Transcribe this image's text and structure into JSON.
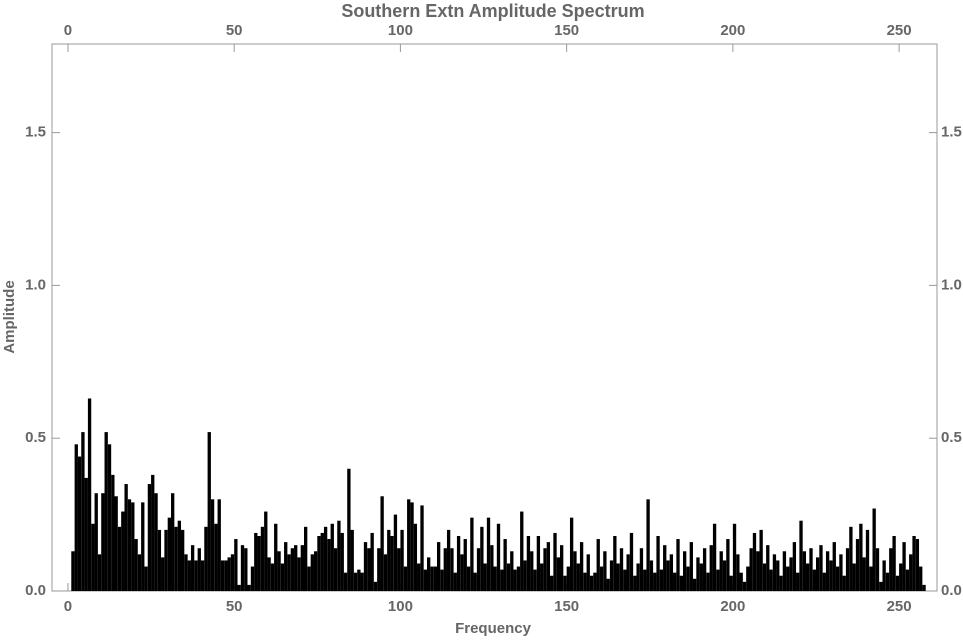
{
  "chart_data": {
    "type": "bar",
    "title": "Southern Extn Amplitude Spectrum",
    "xlabel": "Frequency",
    "ylabel": "Amplitude",
    "color": "#000000",
    "xlim": [
      -4.8,
      261.4
    ],
    "ylim": [
      0,
      1.79
    ],
    "xticks": [
      0,
      50,
      100,
      150,
      200,
      250
    ],
    "yticks": [
      {
        "value": 0,
        "label": "0.0"
      },
      {
        "value": 0.5,
        "label": "0.5"
      },
      {
        "value": 1,
        "label": "1.0"
      },
      {
        "value": 1.5,
        "label": "1.5"
      }
    ],
    "x": [
      1,
      2,
      3,
      4,
      5,
      6,
      7,
      8,
      9,
      10,
      11,
      12,
      13,
      14,
      15,
      16,
      17,
      18,
      19,
      20,
      21,
      22,
      23,
      24,
      25,
      26,
      27,
      28,
      29,
      30,
      31,
      32,
      33,
      34,
      35,
      36,
      37,
      38,
      39,
      40,
      41,
      42,
      43,
      44,
      45,
      46,
      47,
      48,
      49,
      50,
      51,
      52,
      53,
      54,
      55,
      56,
      57,
      58,
      59,
      60,
      61,
      62,
      63,
      64,
      65,
      66,
      67,
      68,
      69,
      70,
      71,
      72,
      73,
      74,
      75,
      76,
      77,
      78,
      79,
      80,
      81,
      82,
      83,
      84,
      85,
      86,
      87,
      88,
      89,
      90,
      91,
      92,
      93,
      94,
      95,
      96,
      97,
      98,
      99,
      100,
      101,
      102,
      103,
      104,
      105,
      106,
      107,
      108,
      109,
      110,
      111,
      112,
      113,
      114,
      115,
      116,
      117,
      118,
      119,
      120,
      121,
      122,
      123,
      124,
      125,
      126,
      127,
      128,
      129,
      130,
      131,
      132,
      133,
      134,
      135,
      136,
      137,
      138,
      139,
      140,
      141,
      142,
      143,
      144,
      145,
      146,
      147,
      148,
      149,
      150,
      151,
      152,
      153,
      154,
      155,
      156,
      157,
      158,
      159,
      160,
      161,
      162,
      163,
      164,
      165,
      166,
      167,
      168,
      169,
      170,
      171,
      172,
      173,
      174,
      175,
      176,
      177,
      178,
      179,
      180,
      181,
      182,
      183,
      184,
      185,
      186,
      187,
      188,
      189,
      190,
      191,
      192,
      193,
      194,
      195,
      196,
      197,
      198,
      199,
      200,
      201,
      202,
      203,
      204,
      205,
      206,
      207,
      208,
      209,
      210,
      211,
      212,
      213,
      214,
      215,
      216,
      217,
      218,
      219,
      220,
      221,
      222,
      223,
      224,
      225,
      226,
      227,
      228,
      229,
      230,
      231,
      232,
      233,
      234,
      235,
      236,
      237,
      238,
      239,
      240,
      241,
      242,
      243,
      244,
      245,
      246,
      247,
      248,
      249,
      250,
      251,
      252,
      253,
      254,
      255,
      256,
      257
    ],
    "values": [
      0.13,
      0.48,
      0.44,
      0.52,
      0.37,
      0.63,
      0.22,
      0.32,
      0.12,
      0.32,
      0.52,
      0.48,
      0.38,
      0.31,
      0.21,
      0.26,
      0.35,
      0.3,
      0.29,
      0.17,
      0.12,
      0.29,
      0.08,
      0.35,
      0.38,
      0.32,
      0.2,
      0.11,
      0.2,
      0.24,
      0.32,
      0.21,
      0.23,
      0.2,
      0.12,
      0.1,
      0.15,
      0.1,
      0.14,
      0.1,
      0.21,
      0.52,
      0.3,
      0.22,
      0.3,
      0.1,
      0.1,
      0.11,
      0.12,
      0.17,
      0.02,
      0.15,
      0.14,
      0.02,
      0.08,
      0.19,
      0.18,
      0.21,
      0.26,
      0.11,
      0.09,
      0.22,
      0.13,
      0.09,
      0.16,
      0.12,
      0.14,
      0.15,
      0.11,
      0.15,
      0.21,
      0.08,
      0.12,
      0.13,
      0.18,
      0.19,
      0.21,
      0.17,
      0.22,
      0.14,
      0.23,
      0.19,
      0.06,
      0.4,
      0.2,
      0.06,
      0.07,
      0.06,
      0.16,
      0.14,
      0.19,
      0.03,
      0.14,
      0.31,
      0.12,
      0.2,
      0.18,
      0.25,
      0.14,
      0.2,
      0.08,
      0.3,
      0.29,
      0.22,
      0.09,
      0.28,
      0.07,
      0.11,
      0.08,
      0.08,
      0.16,
      0.07,
      0.14,
      0.2,
      0.14,
      0.06,
      0.18,
      0.12,
      0.17,
      0.08,
      0.24,
      0.06,
      0.14,
      0.21,
      0.09,
      0.24,
      0.15,
      0.08,
      0.22,
      0.07,
      0.17,
      0.09,
      0.13,
      0.07,
      0.08,
      0.26,
      0.1,
      0.18,
      0.13,
      0.07,
      0.18,
      0.09,
      0.14,
      0.16,
      0.05,
      0.19,
      0.11,
      0.15,
      0.05,
      0.08,
      0.24,
      0.13,
      0.09,
      0.16,
      0.06,
      0.12,
      0.05,
      0.06,
      0.17,
      0.08,
      0.13,
      0.04,
      0.1,
      0.18,
      0.09,
      0.14,
      0.07,
      0.12,
      0.19,
      0.05,
      0.09,
      0.14,
      0.07,
      0.3,
      0.1,
      0.06,
      0.18,
      0.07,
      0.15,
      0.1,
      0.12,
      0.06,
      0.17,
      0.05,
      0.13,
      0.08,
      0.16,
      0.04,
      0.11,
      0.09,
      0.14,
      0.06,
      0.15,
      0.22,
      0.07,
      0.13,
      0.1,
      0.17,
      0.05,
      0.22,
      0.12,
      0.06,
      0.03,
      0.08,
      0.14,
      0.19,
      0.13,
      0.2,
      0.09,
      0.15,
      0.07,
      0.12,
      0.1,
      0.05,
      0.13,
      0.08,
      0.11,
      0.16,
      0.06,
      0.23,
      0.13,
      0.09,
      0.14,
      0.07,
      0.11,
      0.15,
      0.06,
      0.13,
      0.1,
      0.16,
      0.08,
      0.12,
      0.05,
      0.14,
      0.21,
      0.09,
      0.17,
      0.22,
      0.11,
      0.2,
      0.08,
      0.27,
      0.14,
      0.03,
      0.1,
      0.06,
      0.14,
      0.18,
      0.05,
      0.09,
      0.16,
      0.07,
      0.12,
      0.18,
      0.17,
      0.08,
      0.02
    ]
  }
}
